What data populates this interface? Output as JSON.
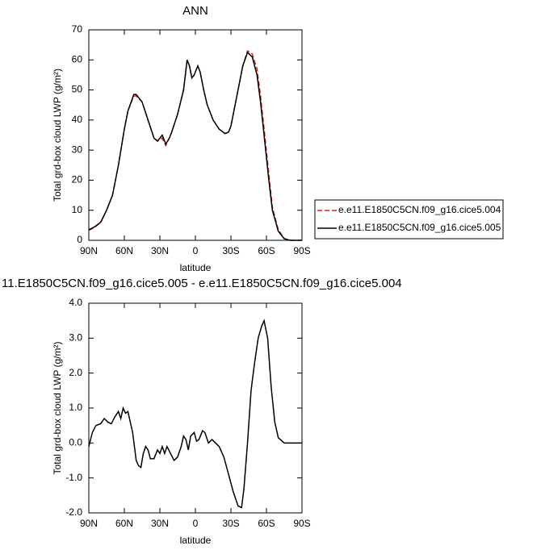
{
  "chart_data": [
    {
      "type": "line",
      "title": "ANN",
      "xlabel": "latitude",
      "ylabel": "Total grd-box cloud LWP (g/m²)",
      "xlim": [
        90,
        -90
      ],
      "xticks": [
        {
          "value": 90,
          "label": "90N"
        },
        {
          "value": 60,
          "label": "60N"
        },
        {
          "value": 30,
          "label": "30N"
        },
        0,
        {
          "value": -30,
          "label": "30S"
        },
        {
          "value": -60,
          "label": "60S"
        },
        {
          "value": -90,
          "label": "90S"
        }
      ],
      "ylim": [
        0,
        70
      ],
      "yticks": [
        0,
        10,
        20,
        30,
        40,
        50,
        60,
        70
      ],
      "legend": "right",
      "x": [
        90,
        85,
        80,
        75,
        70,
        65,
        60,
        57,
        52,
        50,
        45,
        40,
        35,
        32,
        28,
        25,
        22,
        20,
        15,
        10,
        7,
        5,
        3,
        1,
        -2,
        -4,
        -7,
        -10,
        -15,
        -20,
        -25,
        -28,
        -30,
        -35,
        -40,
        -44,
        -48,
        -52,
        -55,
        -58,
        -62,
        -65,
        -70,
        -75,
        -80,
        -85,
        -90
      ],
      "series": [
        {
          "name": "e.e11.E1850C5CN.f09_g16.cice5.004",
          "color": "#e0201b",
          "dashed": true,
          "values": [
            3.3,
            4.3,
            6,
            10,
            15,
            25,
            37,
            43,
            48,
            48,
            46,
            40,
            34,
            33,
            34,
            31.5,
            34,
            36,
            42,
            50,
            60,
            58,
            54,
            55,
            58,
            56,
            50,
            45,
            40,
            37,
            35.5,
            36,
            38,
            48,
            58,
            63,
            62,
            57,
            48,
            37,
            22,
            11,
            3.5,
            0.6,
            0,
            0,
            0
          ]
        },
        {
          "name": "e.e11.E1850C5CN.f09_g16.cice5.005",
          "color": "#000000",
          "dashed": false,
          "values": [
            3.5,
            4.5,
            6,
            10,
            15,
            25,
            37,
            43,
            48.5,
            48.5,
            46,
            40,
            34,
            33,
            35,
            32,
            34,
            36,
            42,
            50,
            60,
            58,
            54,
            55,
            58,
            56,
            50,
            45,
            40,
            37,
            35.5,
            36,
            38,
            48,
            58,
            62.5,
            61,
            55,
            46,
            35,
            20,
            10,
            3,
            0.5,
            0,
            0,
            0
          ]
        }
      ]
    },
    {
      "type": "line",
      "title": "11.E1850C5CN.f09_g16.cice5.005 - e.e11.E1850C5CN.f09_g16.cice5.004",
      "xlabel": "latitude",
      "ylabel": "Total grd-box cloud LWP (g/m²)",
      "xlim": [
        90,
        -90
      ],
      "xticks": [
        {
          "value": 90,
          "label": "90N"
        },
        {
          "value": 60,
          "label": "60N"
        },
        {
          "value": 30,
          "label": "30N"
        },
        0,
        {
          "value": -30,
          "label": "30S"
        },
        {
          "value": -60,
          "label": "60S"
        },
        {
          "value": -90,
          "label": "90S"
        }
      ],
      "ylim": [
        -2,
        4
      ],
      "yticks": [
        {
          "value": -2,
          "label": "-2.0"
        },
        {
          "value": -1,
          "label": "-1.0"
        },
        {
          "value": 0,
          "label": "0.0"
        },
        {
          "value": 1,
          "label": "1.0"
        },
        {
          "value": 2,
          "label": "2.0"
        },
        {
          "value": 3,
          "label": "3.0"
        },
        {
          "value": 4,
          "label": "4.0"
        }
      ],
      "x": [
        90,
        87,
        84,
        80,
        77,
        74,
        71,
        68,
        65,
        63,
        61,
        59,
        57,
        55,
        53,
        50,
        48,
        46,
        44,
        42,
        40,
        38,
        35,
        32,
        30,
        28,
        26,
        24,
        21,
        18,
        15,
        12,
        10,
        8,
        6,
        4,
        1,
        -1,
        -3,
        -6,
        -8,
        -11,
        -14,
        -17,
        -20,
        -24,
        -28,
        -32,
        -36,
        -39,
        -41,
        -44,
        -47,
        -50,
        -53,
        -56,
        -58,
        -61,
        -64,
        -67,
        -70,
        -75,
        -90
      ],
      "series": [
        {
          "color": "#000000",
          "dashed": false,
          "values": [
            -0.1,
            0.3,
            0.5,
            0.55,
            0.7,
            0.6,
            0.55,
            0.75,
            0.9,
            0.7,
            1.0,
            0.85,
            0.9,
            0.6,
            0.3,
            -0.5,
            -0.65,
            -0.7,
            -0.3,
            -0.1,
            -0.2,
            -0.45,
            -0.45,
            -0.2,
            -0.3,
            -0.1,
            -0.3,
            -0.1,
            -0.3,
            -0.5,
            -0.4,
            -0.1,
            0.2,
            0.1,
            -0.2,
            0.2,
            0.3,
            0.05,
            0.1,
            0.35,
            0.3,
            0,
            0.1,
            0,
            -0.1,
            -0.4,
            -0.9,
            -1.4,
            -1.8,
            -1.85,
            -1.3,
            0,
            1.5,
            2.3,
            3.0,
            3.35,
            3.5,
            3.0,
            1.6,
            0.6,
            0.15,
            0,
            0
          ]
        }
      ]
    }
  ]
}
